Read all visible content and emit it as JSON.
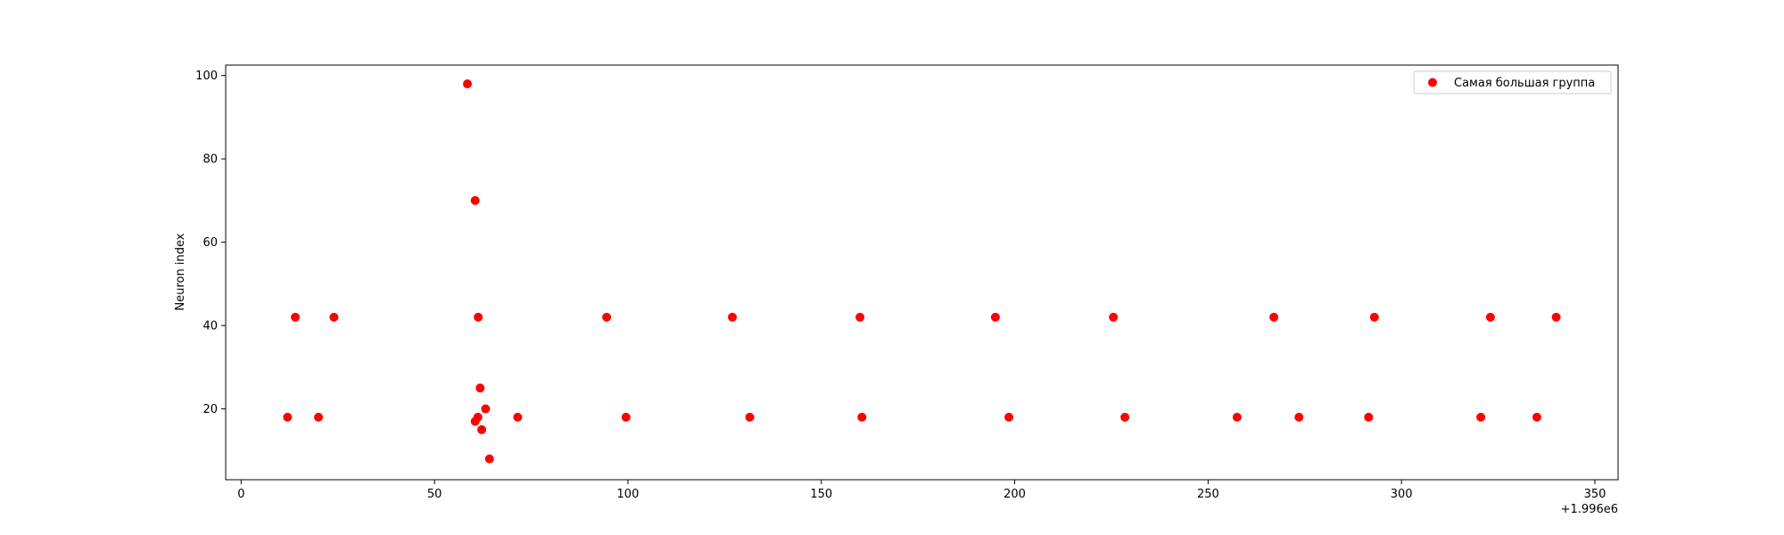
{
  "chart_data": {
    "type": "scatter",
    "title": "",
    "xlabel": "",
    "ylabel": "Neuron index",
    "x_offset_label": "+1.996e6",
    "xlim": [
      -4,
      356
    ],
    "ylim": [
      3,
      102.5
    ],
    "xticks": [
      0,
      50,
      100,
      150,
      200,
      250,
      300,
      350
    ],
    "yticks": [
      20,
      40,
      60,
      80,
      100
    ],
    "grid": false,
    "legend_position": "top-right",
    "series": [
      {
        "name": "Самая большая группа",
        "color": "#ff0000",
        "points": [
          {
            "x": 12,
            "y": 18
          },
          {
            "x": 14,
            "y": 42
          },
          {
            "x": 20,
            "y": 18
          },
          {
            "x": 24,
            "y": 42
          },
          {
            "x": 58.5,
            "y": 98
          },
          {
            "x": 60.5,
            "y": 70
          },
          {
            "x": 60.5,
            "y": 17
          },
          {
            "x": 61.2,
            "y": 18
          },
          {
            "x": 61.3,
            "y": 42
          },
          {
            "x": 61.8,
            "y": 25
          },
          {
            "x": 62.2,
            "y": 15
          },
          {
            "x": 63.2,
            "y": 20
          },
          {
            "x": 64.2,
            "y": 8
          },
          {
            "x": 71.5,
            "y": 18
          },
          {
            "x": 94.5,
            "y": 42
          },
          {
            "x": 99.5,
            "y": 18
          },
          {
            "x": 127,
            "y": 42
          },
          {
            "x": 131.5,
            "y": 18
          },
          {
            "x": 160,
            "y": 42
          },
          {
            "x": 160.5,
            "y": 18
          },
          {
            "x": 195,
            "y": 42
          },
          {
            "x": 198.5,
            "y": 18
          },
          {
            "x": 225.5,
            "y": 42
          },
          {
            "x": 228.5,
            "y": 18
          },
          {
            "x": 257.5,
            "y": 18
          },
          {
            "x": 267,
            "y": 42
          },
          {
            "x": 273.5,
            "y": 18
          },
          {
            "x": 291.5,
            "y": 18
          },
          {
            "x": 293,
            "y": 42
          },
          {
            "x": 320.5,
            "y": 18
          },
          {
            "x": 323,
            "y": 42
          },
          {
            "x": 335,
            "y": 18
          },
          {
            "x": 340,
            "y": 42
          }
        ]
      }
    ]
  }
}
